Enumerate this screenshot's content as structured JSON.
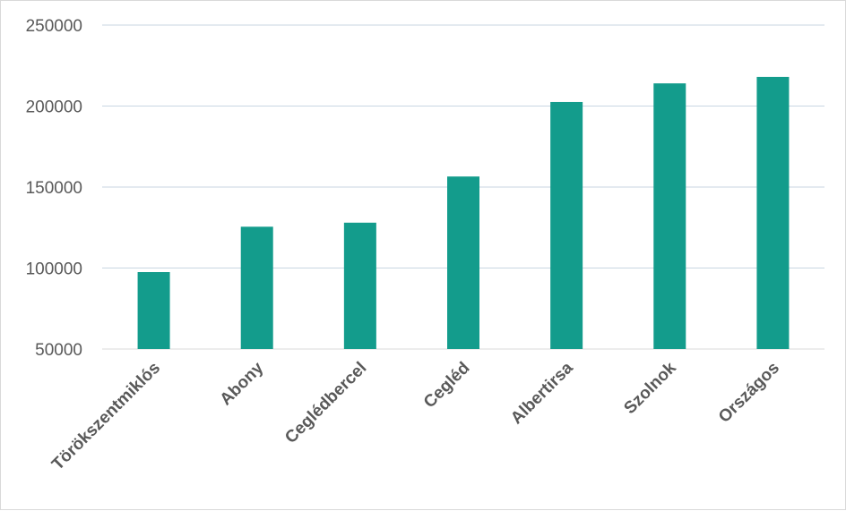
{
  "chart_data": {
    "type": "bar",
    "categories": [
      "Törökszentmiklós",
      "Abony",
      "Ceglédbercel",
      "Cegléd",
      "Albertirsa",
      "Szolnok",
      "Országos"
    ],
    "values": [
      97500,
      125500,
      128000,
      156500,
      202500,
      214000,
      218000
    ],
    "ylim": [
      50000,
      250000
    ],
    "yticks": [
      50000,
      100000,
      150000,
      200000,
      250000
    ],
    "bar_color": "#139c8c",
    "grid": true,
    "grid_color": "#c8d6e2",
    "axis_color": "#d9d9d9",
    "legend": "none"
  }
}
